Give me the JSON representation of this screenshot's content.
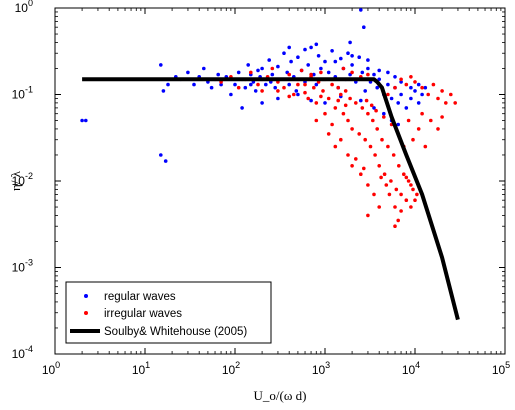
{
  "chart_data": {
    "type": "scatter",
    "title": "",
    "xlabel": "U_o/(ω d)",
    "ylabel": "η/ λ",
    "xscale": "log",
    "yscale": "log",
    "xlim": [
      1,
      100000
    ],
    "ylim": [
      0.0001,
      1
    ],
    "x_ticks": [
      {
        "value": 1,
        "base": "10",
        "exp": "0"
      },
      {
        "value": 10,
        "base": "10",
        "exp": "1"
      },
      {
        "value": 100,
        "base": "10",
        "exp": "2"
      },
      {
        "value": 1000,
        "base": "10",
        "exp": "3"
      },
      {
        "value": 10000,
        "base": "10",
        "exp": "4"
      },
      {
        "value": 100000,
        "base": "10",
        "exp": "5"
      }
    ],
    "y_ticks": [
      {
        "value": 0.0001,
        "base": "10",
        "exp": "-4"
      },
      {
        "value": 0.001,
        "base": "10",
        "exp": "-3"
      },
      {
        "value": 0.01,
        "base": "10",
        "exp": "-2"
      },
      {
        "value": 0.1,
        "base": "10",
        "exp": "-1"
      },
      {
        "value": 1,
        "base": "10",
        "exp": "0"
      }
    ],
    "grid": false,
    "legend_position": "bottom-left",
    "series": [
      {
        "name": "regular waves",
        "kind": "scatter",
        "color": "#0000ff",
        "points": [
          [
            2.0,
            0.05
          ],
          [
            2.2,
            0.05
          ],
          [
            15,
            0.02
          ],
          [
            17,
            0.017
          ],
          [
            15,
            0.22
          ],
          [
            16,
            0.11
          ],
          [
            18,
            0.13
          ],
          [
            22,
            0.16
          ],
          [
            25,
            0.15
          ],
          [
            30,
            0.18
          ],
          [
            35,
            0.13
          ],
          [
            40,
            0.16
          ],
          [
            45,
            0.2
          ],
          [
            50,
            0.14
          ],
          [
            55,
            0.12
          ],
          [
            60,
            0.15
          ],
          [
            65,
            0.17
          ],
          [
            70,
            0.13
          ],
          [
            80,
            0.16
          ],
          [
            90,
            0.1
          ],
          [
            100,
            0.13
          ],
          [
            110,
            0.18
          ],
          [
            120,
            0.15
          ],
          [
            130,
            0.12
          ],
          [
            140,
            0.22
          ],
          [
            150,
            0.17
          ],
          [
            160,
            0.14
          ],
          [
            170,
            0.11
          ],
          [
            180,
            0.19
          ],
          [
            190,
            0.16
          ],
          [
            200,
            0.2
          ],
          [
            220,
            0.13
          ],
          [
            240,
            0.25
          ],
          [
            260,
            0.17
          ],
          [
            280,
            0.12
          ],
          [
            300,
            0.21
          ],
          [
            320,
            0.15
          ],
          [
            350,
            0.3
          ],
          [
            380,
            0.18
          ],
          [
            400,
            0.13
          ],
          [
            420,
            0.24
          ],
          [
            450,
            0.16
          ],
          [
            480,
            0.11
          ],
          [
            500,
            0.27
          ],
          [
            550,
            0.19
          ],
          [
            600,
            0.14
          ],
          [
            650,
            0.22
          ],
          [
            700,
            0.35
          ],
          [
            750,
            0.17
          ],
          [
            800,
            0.13
          ],
          [
            850,
            0.28
          ],
          [
            900,
            0.2
          ],
          [
            950,
            0.15
          ],
          [
            1000,
            0.24
          ],
          [
            1100,
            0.18
          ],
          [
            1200,
            0.32
          ],
          [
            1300,
            0.16
          ],
          [
            1400,
            0.12
          ],
          [
            1500,
            0.26
          ],
          [
            1600,
            0.2
          ],
          [
            1700,
            0.15
          ],
          [
            1800,
            0.3
          ],
          [
            1900,
            0.17
          ],
          [
            2000,
            0.22
          ],
          [
            2200,
            0.14
          ],
          [
            2400,
            0.27
          ],
          [
            2600,
            0.18
          ],
          [
            2800,
            0.11
          ],
          [
            3000,
            0.2
          ],
          [
            3200,
            0.14
          ],
          [
            3500,
            0.17
          ],
          [
            3800,
            0.12
          ],
          [
            4000,
            0.15
          ],
          [
            4500,
            0.1
          ],
          [
            5000,
            0.13
          ],
          [
            5500,
            0.09
          ],
          [
            6000,
            0.12
          ],
          [
            6500,
            0.08
          ],
          [
            7000,
            0.1
          ],
          [
            8000,
            0.07
          ],
          [
            9000,
            0.09
          ],
          [
            10000,
            0.11
          ],
          [
            11000,
            0.08
          ],
          [
            12000,
            0.1
          ],
          [
            2500,
            0.95
          ],
          [
            2700,
            0.6
          ],
          [
            1900,
            0.4
          ],
          [
            800,
            0.38
          ],
          [
            600,
            0.33
          ],
          [
            400,
            0.35
          ],
          [
            120,
            0.07
          ],
          [
            200,
            0.08
          ],
          [
            300,
            0.09
          ],
          [
            500,
            0.1
          ],
          [
            1500,
            0.095
          ],
          [
            2500,
            0.085
          ],
          [
            3500,
            0.07
          ],
          [
            4500,
            0.06
          ],
          [
            5500,
            0.05
          ],
          [
            6500,
            0.045
          ],
          [
            1000,
            0.08
          ],
          [
            700,
            0.085
          ],
          [
            9000,
            0.12
          ],
          [
            11000,
            0.13
          ],
          [
            13000,
            0.12
          ],
          [
            7000,
            0.14
          ],
          [
            6000,
            0.16
          ],
          [
            5000,
            0.18
          ],
          [
            4000,
            0.19
          ],
          [
            3000,
            0.25
          ],
          [
            2000,
            0.28
          ],
          [
            1300,
            0.24
          ],
          [
            250,
            0.14
          ],
          [
            150,
            0.13
          ]
        ]
      },
      {
        "name": "irregular waves",
        "kind": "scatter",
        "color": "#ff0000",
        "points": [
          [
            70,
            0.14
          ],
          [
            90,
            0.16
          ],
          [
            110,
            0.12
          ],
          [
            130,
            0.15
          ],
          [
            150,
            0.18
          ],
          [
            180,
            0.13
          ],
          [
            200,
            0.11
          ],
          [
            230,
            0.16
          ],
          [
            260,
            0.2
          ],
          [
            300,
            0.14
          ],
          [
            350,
            0.12
          ],
          [
            400,
            0.17
          ],
          [
            450,
            0.1
          ],
          [
            500,
            0.15
          ],
          [
            550,
            0.19
          ],
          [
            600,
            0.13
          ],
          [
            650,
            0.09
          ],
          [
            700,
            0.16
          ],
          [
            750,
            0.12
          ],
          [
            800,
            0.08
          ],
          [
            850,
            0.14
          ],
          [
            900,
            0.18
          ],
          [
            950,
            0.11
          ],
          [
            1000,
            0.15
          ],
          [
            1100,
            0.09
          ],
          [
            1200,
            0.13
          ],
          [
            1300,
            0.07
          ],
          [
            1400,
            0.12
          ],
          [
            1500,
            0.1
          ],
          [
            1600,
            0.06
          ],
          [
            1700,
            0.11
          ],
          [
            1800,
            0.05
          ],
          [
            1900,
            0.09
          ],
          [
            2000,
            0.04
          ],
          [
            2200,
            0.08
          ],
          [
            2400,
            0.035
          ],
          [
            2600,
            0.07
          ],
          [
            2800,
            0.03
          ],
          [
            3000,
            0.06
          ],
          [
            3200,
            0.025
          ],
          [
            3400,
            0.05
          ],
          [
            3600,
            0.02
          ],
          [
            3800,
            0.04
          ],
          [
            4000,
            0.015
          ],
          [
            4300,
            0.03
          ],
          [
            4600,
            0.012
          ],
          [
            5000,
            0.025
          ],
          [
            5400,
            0.01
          ],
          [
            5800,
            0.02
          ],
          [
            6200,
            0.008
          ],
          [
            6600,
            0.015
          ],
          [
            7000,
            0.007
          ],
          [
            7500,
            0.012
          ],
          [
            8000,
            0.006
          ],
          [
            8500,
            0.01
          ],
          [
            9000,
            0.005
          ],
          [
            9500,
            0.008
          ],
          [
            10000,
            0.006
          ],
          [
            2500,
            0.012
          ],
          [
            3000,
            0.009
          ],
          [
            3500,
            0.007
          ],
          [
            2000,
            0.015
          ],
          [
            1500,
            0.03
          ],
          [
            1200,
            0.045
          ],
          [
            1000,
            0.06
          ],
          [
            800,
            0.05
          ],
          [
            1100,
            0.035
          ],
          [
            1300,
            0.025
          ],
          [
            1800,
            0.02
          ],
          [
            2200,
            0.018
          ],
          [
            2700,
            0.014
          ],
          [
            4200,
            0.011
          ],
          [
            4800,
            0.009
          ],
          [
            5200,
            0.007
          ],
          [
            6000,
            0.005
          ],
          [
            7000,
            0.0045
          ],
          [
            5000,
            0.1
          ],
          [
            6000,
            0.12
          ],
          [
            7000,
            0.15
          ],
          [
            8000,
            0.13
          ],
          [
            9000,
            0.16
          ],
          [
            10000,
            0.14
          ],
          [
            12000,
            0.12
          ],
          [
            14000,
            0.1
          ],
          [
            16000,
            0.13
          ],
          [
            18000,
            0.09
          ],
          [
            20000,
            0.11
          ],
          [
            22000,
            0.08
          ],
          [
            25000,
            0.1
          ],
          [
            28000,
            0.08
          ],
          [
            4000,
            0.13
          ],
          [
            3500,
            0.15
          ],
          [
            3000,
            0.17
          ],
          [
            2500,
            0.16
          ],
          [
            2000,
            0.18
          ],
          [
            1600,
            0.2
          ],
          [
            700,
            0.17
          ],
          [
            500,
            0.13
          ],
          [
            300,
            0.11
          ],
          [
            200,
            0.15
          ],
          [
            8500,
            0.05
          ],
          [
            9500,
            0.03
          ],
          [
            11000,
            0.04
          ],
          [
            7500,
            0.025
          ],
          [
            6500,
            0.035
          ],
          [
            5500,
            0.045
          ],
          [
            4500,
            0.055
          ],
          [
            3700,
            0.065
          ],
          [
            3300,
            0.075
          ],
          [
            2900,
            0.085
          ],
          [
            1700,
            0.075
          ],
          [
            1400,
            0.085
          ],
          [
            900,
            0.095
          ],
          [
            600,
            0.105
          ],
          [
            400,
            0.095
          ],
          [
            6000,
            0.003
          ],
          [
            6500,
            0.0035
          ],
          [
            4000,
            0.005
          ],
          [
            3000,
            0.004
          ],
          [
            9000,
            0.009
          ],
          [
            8000,
            0.011
          ],
          [
            10500,
            0.007
          ],
          [
            12000,
            0.06
          ],
          [
            15000,
            0.05
          ],
          [
            18000,
            0.04
          ],
          [
            20000,
            0.055
          ],
          [
            13000,
            0.025
          ]
        ]
      },
      {
        "name": "Soulby& Whitehouse (2005)",
        "kind": "line",
        "color": "#000000",
        "points": [
          [
            2,
            0.15
          ],
          [
            3500,
            0.15
          ],
          [
            3800,
            0.14
          ],
          [
            4300,
            0.12
          ],
          [
            5500,
            0.055
          ],
          [
            8000,
            0.02
          ],
          [
            12000,
            0.007
          ],
          [
            20000,
            0.0013
          ],
          [
            30000,
            0.00025
          ]
        ]
      }
    ]
  }
}
